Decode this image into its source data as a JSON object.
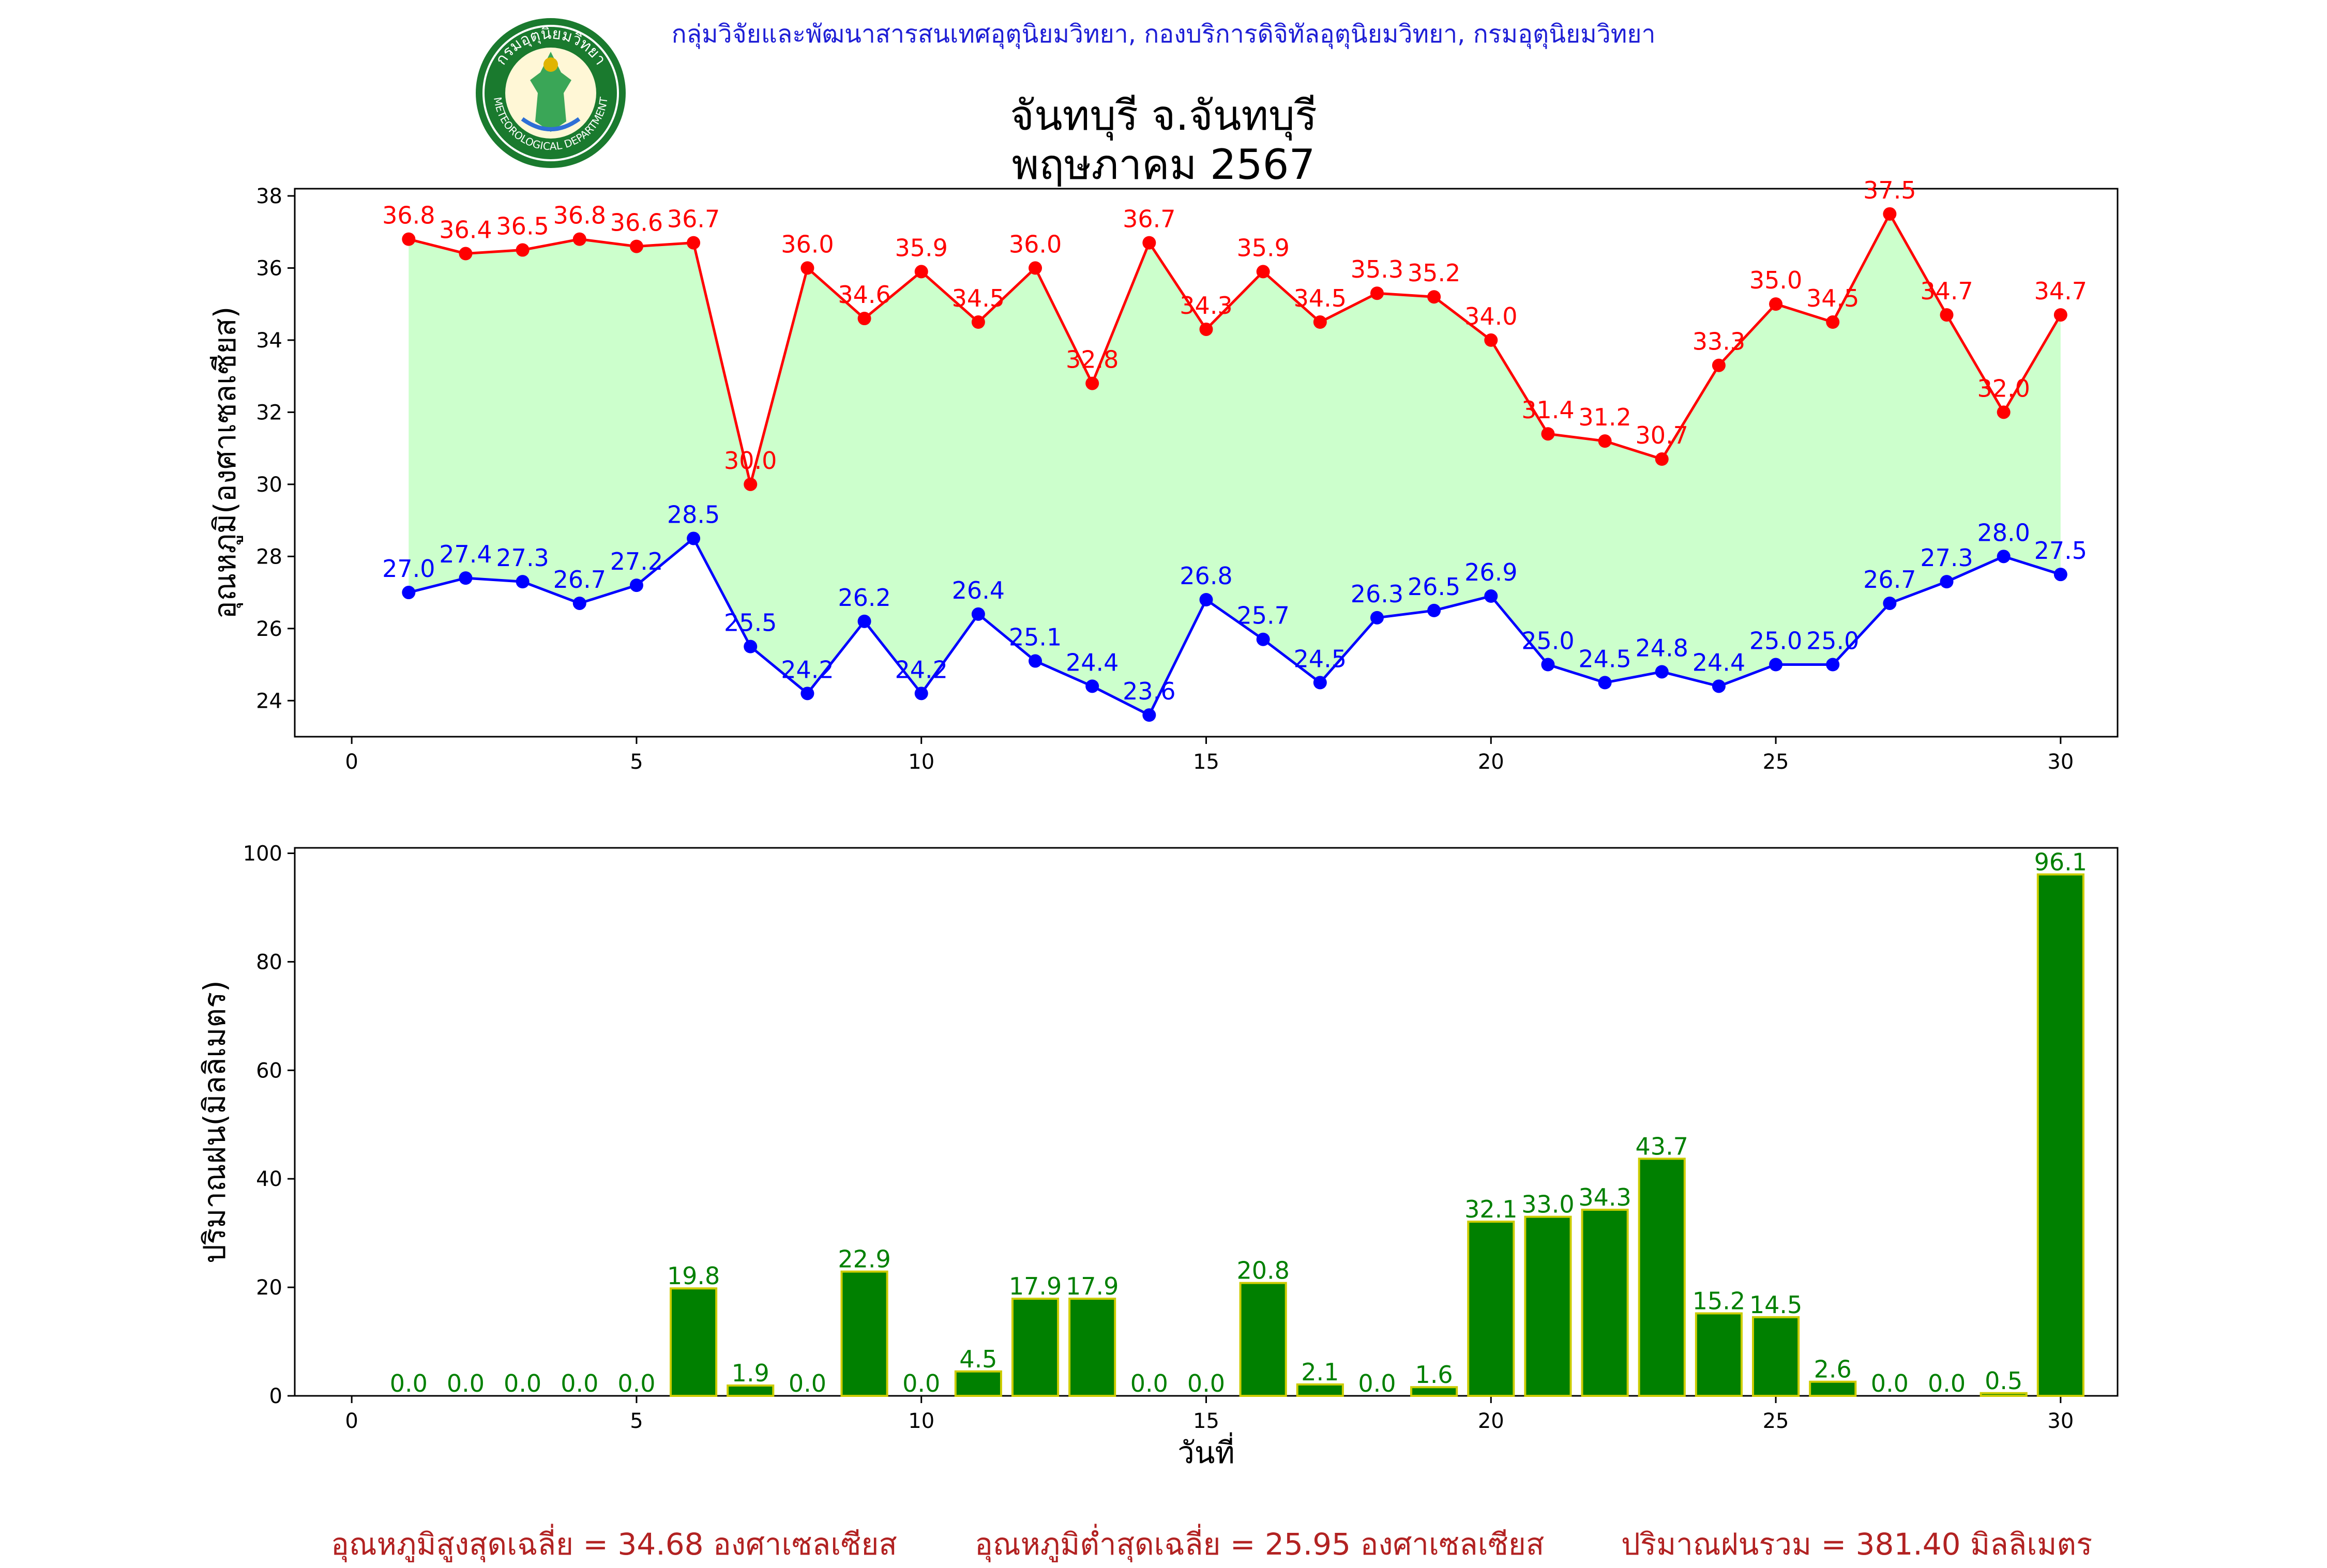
{
  "header": {
    "org_line": "กลุ่มวิจัยและพัฒนาสารสนเทศอุตุนิยมวิทยา, กองบริการดิจิทัลอุตุนิยมวิทยา, กรมอุตุนิยมวิทยา",
    "title_line1": "จันทบุรี จ.จันทบุรี",
    "title_line2": "พฤษภาคม 2567",
    "logo_top_text": "กรมอุตุนิยมวิทยา",
    "logo_bottom_text": "METEOROLOGICAL DEPARTMENT"
  },
  "summary": {
    "avg_max": "อุณหภูมิสูงสุดเฉลี่ย = 34.68 องศาเซลเซียส",
    "avg_min": "อุณหภูมิต่ำสุดเฉลี่ย = 25.95 องศาเซลเซียส",
    "total_rain": "ปริมาณฝนรวม = 381.40 มิลลิเมตร"
  },
  "colors": {
    "max_line": "#ff0000",
    "min_line": "#0000ff",
    "fill": "#ccffcc",
    "bar_fill": "#008000",
    "bar_edge": "#cccc00",
    "bar_label": "#008000"
  },
  "chart_data": [
    {
      "type": "line",
      "ylabel": "อุณหภูมิ(องศาเซลเซียส)",
      "xlabel": "",
      "xlim": [
        -1,
        31
      ],
      "ylim": [
        23,
        38.2
      ],
      "xticks": [
        0,
        5,
        10,
        15,
        20,
        25,
        30
      ],
      "yticks": [
        24,
        26,
        28,
        30,
        32,
        34,
        36,
        38
      ],
      "fill_between_series": true,
      "x": [
        1,
        2,
        3,
        4,
        5,
        6,
        7,
        8,
        9,
        10,
        11,
        12,
        13,
        14,
        15,
        16,
        17,
        18,
        19,
        20,
        21,
        22,
        23,
        24,
        25,
        26,
        27,
        28,
        29,
        30
      ],
      "series": [
        {
          "key": "max",
          "values": [
            36.8,
            36.4,
            36.5,
            36.8,
            36.6,
            36.7,
            30.0,
            36.0,
            34.6,
            35.9,
            34.5,
            36.0,
            32.8,
            36.7,
            34.3,
            35.9,
            34.5,
            35.3,
            35.2,
            34.0,
            31.4,
            31.2,
            30.7,
            33.3,
            35.0,
            34.5,
            37.5,
            34.7,
            32.0,
            34.7
          ]
        },
        {
          "key": "min",
          "values": [
            27.0,
            27.4,
            27.3,
            26.7,
            27.2,
            28.5,
            25.5,
            24.2,
            26.2,
            24.2,
            26.4,
            25.1,
            24.4,
            23.6,
            26.8,
            25.7,
            24.5,
            26.3,
            26.5,
            26.9,
            25.0,
            24.5,
            24.8,
            24.4,
            25.0,
            25.0,
            26.7,
            27.3,
            28.0,
            27.5
          ]
        }
      ]
    },
    {
      "type": "bar",
      "ylabel": "ปริมาณฝน(มิลลิเมตร)",
      "xlabel": "วันที่",
      "xlim": [
        -1,
        31
      ],
      "ylim": [
        0,
        101
      ],
      "xticks": [
        0,
        5,
        10,
        15,
        20,
        25,
        30
      ],
      "yticks": [
        0,
        20,
        40,
        60,
        80,
        100
      ],
      "categories": [
        1,
        2,
        3,
        4,
        5,
        6,
        7,
        8,
        9,
        10,
        11,
        12,
        13,
        14,
        15,
        16,
        17,
        18,
        19,
        20,
        21,
        22,
        23,
        24,
        25,
        26,
        27,
        28,
        29,
        30
      ],
      "values": [
        0.0,
        0.0,
        0.0,
        0.0,
        0.0,
        19.8,
        1.9,
        0.0,
        22.9,
        0.0,
        4.5,
        17.9,
        17.9,
        0.0,
        0.0,
        20.8,
        2.1,
        0.0,
        1.6,
        32.1,
        33.0,
        34.3,
        43.7,
        15.2,
        14.5,
        2.6,
        0.0,
        0.0,
        0.5,
        96.1
      ]
    }
  ]
}
